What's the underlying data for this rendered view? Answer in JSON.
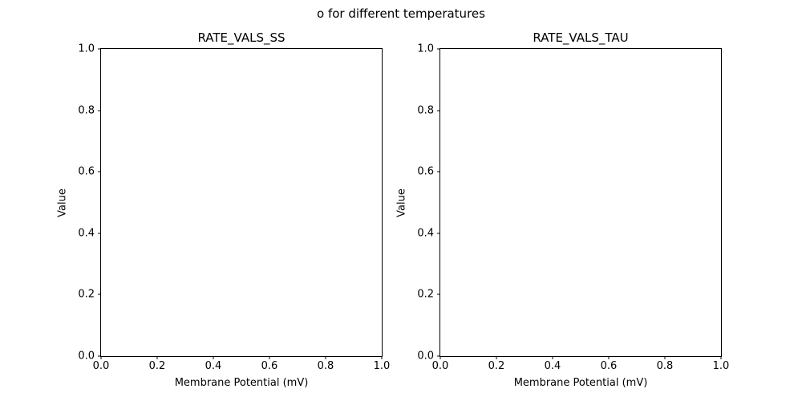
{
  "figure": {
    "suptitle": "o for different temperatures",
    "background_color": "#ffffff",
    "text_color": "#000000",
    "spine_color": "#000000"
  },
  "chart_data": [
    {
      "type": "line",
      "title": "RATE_VALS_SS",
      "xlabel": "Membrane Potential (mV)",
      "ylabel": "Value",
      "xlim": [
        0.0,
        1.0
      ],
      "ylim": [
        0.0,
        1.0
      ],
      "xticks": [
        0.0,
        0.2,
        0.4,
        0.6,
        0.8,
        1.0
      ],
      "yticks": [
        0.0,
        0.2,
        0.4,
        0.6,
        0.8,
        1.0
      ],
      "xtick_labels": [
        "0.0",
        "0.2",
        "0.4",
        "0.6",
        "0.8",
        "1.0"
      ],
      "ytick_labels": [
        "0.0",
        "0.2",
        "0.4",
        "0.6",
        "0.8",
        "1.0"
      ],
      "series": [],
      "grid": false,
      "legend": null,
      "note": "empty axes - no data plotted"
    },
    {
      "type": "line",
      "title": "RATE_VALS_TAU",
      "xlabel": "Membrane Potential (mV)",
      "ylabel": "Value",
      "xlim": [
        0.0,
        1.0
      ],
      "ylim": [
        0.0,
        1.0
      ],
      "xticks": [
        0.0,
        0.2,
        0.4,
        0.6,
        0.8,
        1.0
      ],
      "yticks": [
        0.0,
        0.2,
        0.4,
        0.6,
        0.8,
        1.0
      ],
      "xtick_labels": [
        "0.0",
        "0.2",
        "0.4",
        "0.6",
        "0.8",
        "1.0"
      ],
      "ytick_labels": [
        "0.0",
        "0.2",
        "0.4",
        "0.6",
        "0.8",
        "1.0"
      ],
      "series": [],
      "grid": false,
      "legend": null,
      "note": "empty axes - no data plotted"
    }
  ]
}
